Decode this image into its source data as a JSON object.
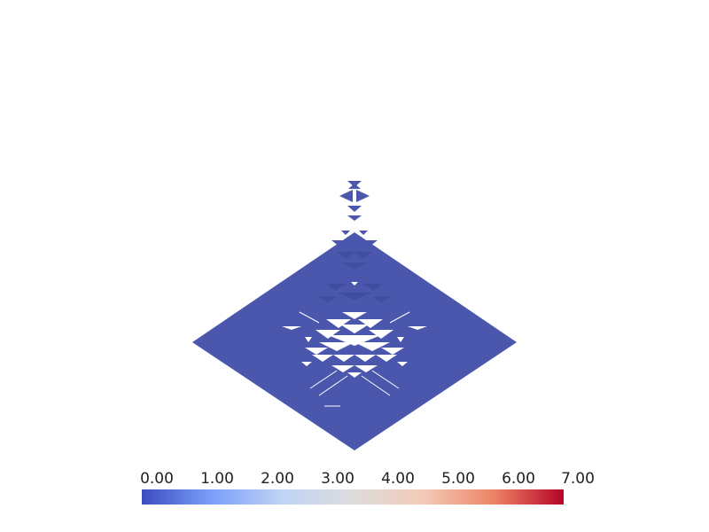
{
  "scene": {
    "surface_color": "#4a57ad",
    "background": "#ffffff"
  },
  "colorbar": {
    "range": [
      0,
      7
    ],
    "tick_labels": [
      "0.00",
      "1.00",
      "2.00",
      "3.00",
      "4.00",
      "5.00",
      "6.00",
      "7.00"
    ],
    "colors": [
      "#3b4cc0",
      "#7b9ff9",
      "#c0d4f5",
      "#dddcdc",
      "#f2cbb7",
      "#ee8468",
      "#b40426"
    ]
  }
}
